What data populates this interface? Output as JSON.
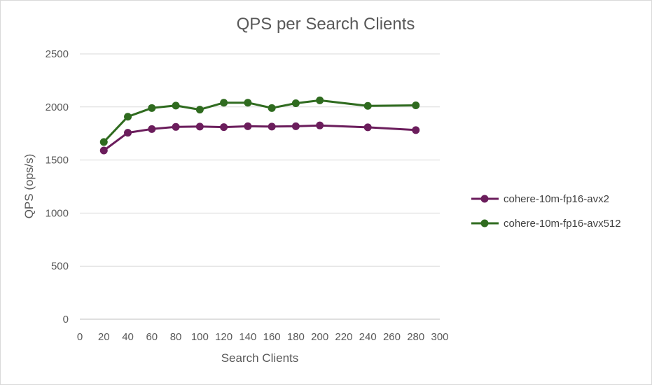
{
  "chart_data": {
    "type": "line",
    "title": "QPS per Search Clients",
    "xlabel": "Search Clients",
    "ylabel": "QPS (ops/s)",
    "xlim": [
      0,
      300
    ],
    "ylim": [
      0,
      2500
    ],
    "xticks": [
      0,
      20,
      40,
      60,
      80,
      100,
      120,
      140,
      160,
      180,
      200,
      220,
      240,
      260,
      280,
      300
    ],
    "yticks": [
      0,
      500,
      1000,
      1500,
      2000,
      2500
    ],
    "grid": "horizontal",
    "legend_position": "right",
    "x": [
      20,
      40,
      60,
      80,
      100,
      120,
      140,
      160,
      180,
      200,
      240,
      280
    ],
    "series": [
      {
        "name": "cohere-10m-fp16-avx2",
        "color": "#6b1d5c",
        "values": [
          1590,
          1757,
          1792,
          1812,
          1815,
          1810,
          1818,
          1815,
          1818,
          1826,
          1808,
          1782
        ]
      },
      {
        "name": "cohere-10m-fp16-avx512",
        "color": "#2f6b1f",
        "values": [
          1670,
          1908,
          1990,
          2013,
          1975,
          2040,
          2040,
          1990,
          2035,
          2062,
          2010,
          2015
        ]
      }
    ]
  }
}
